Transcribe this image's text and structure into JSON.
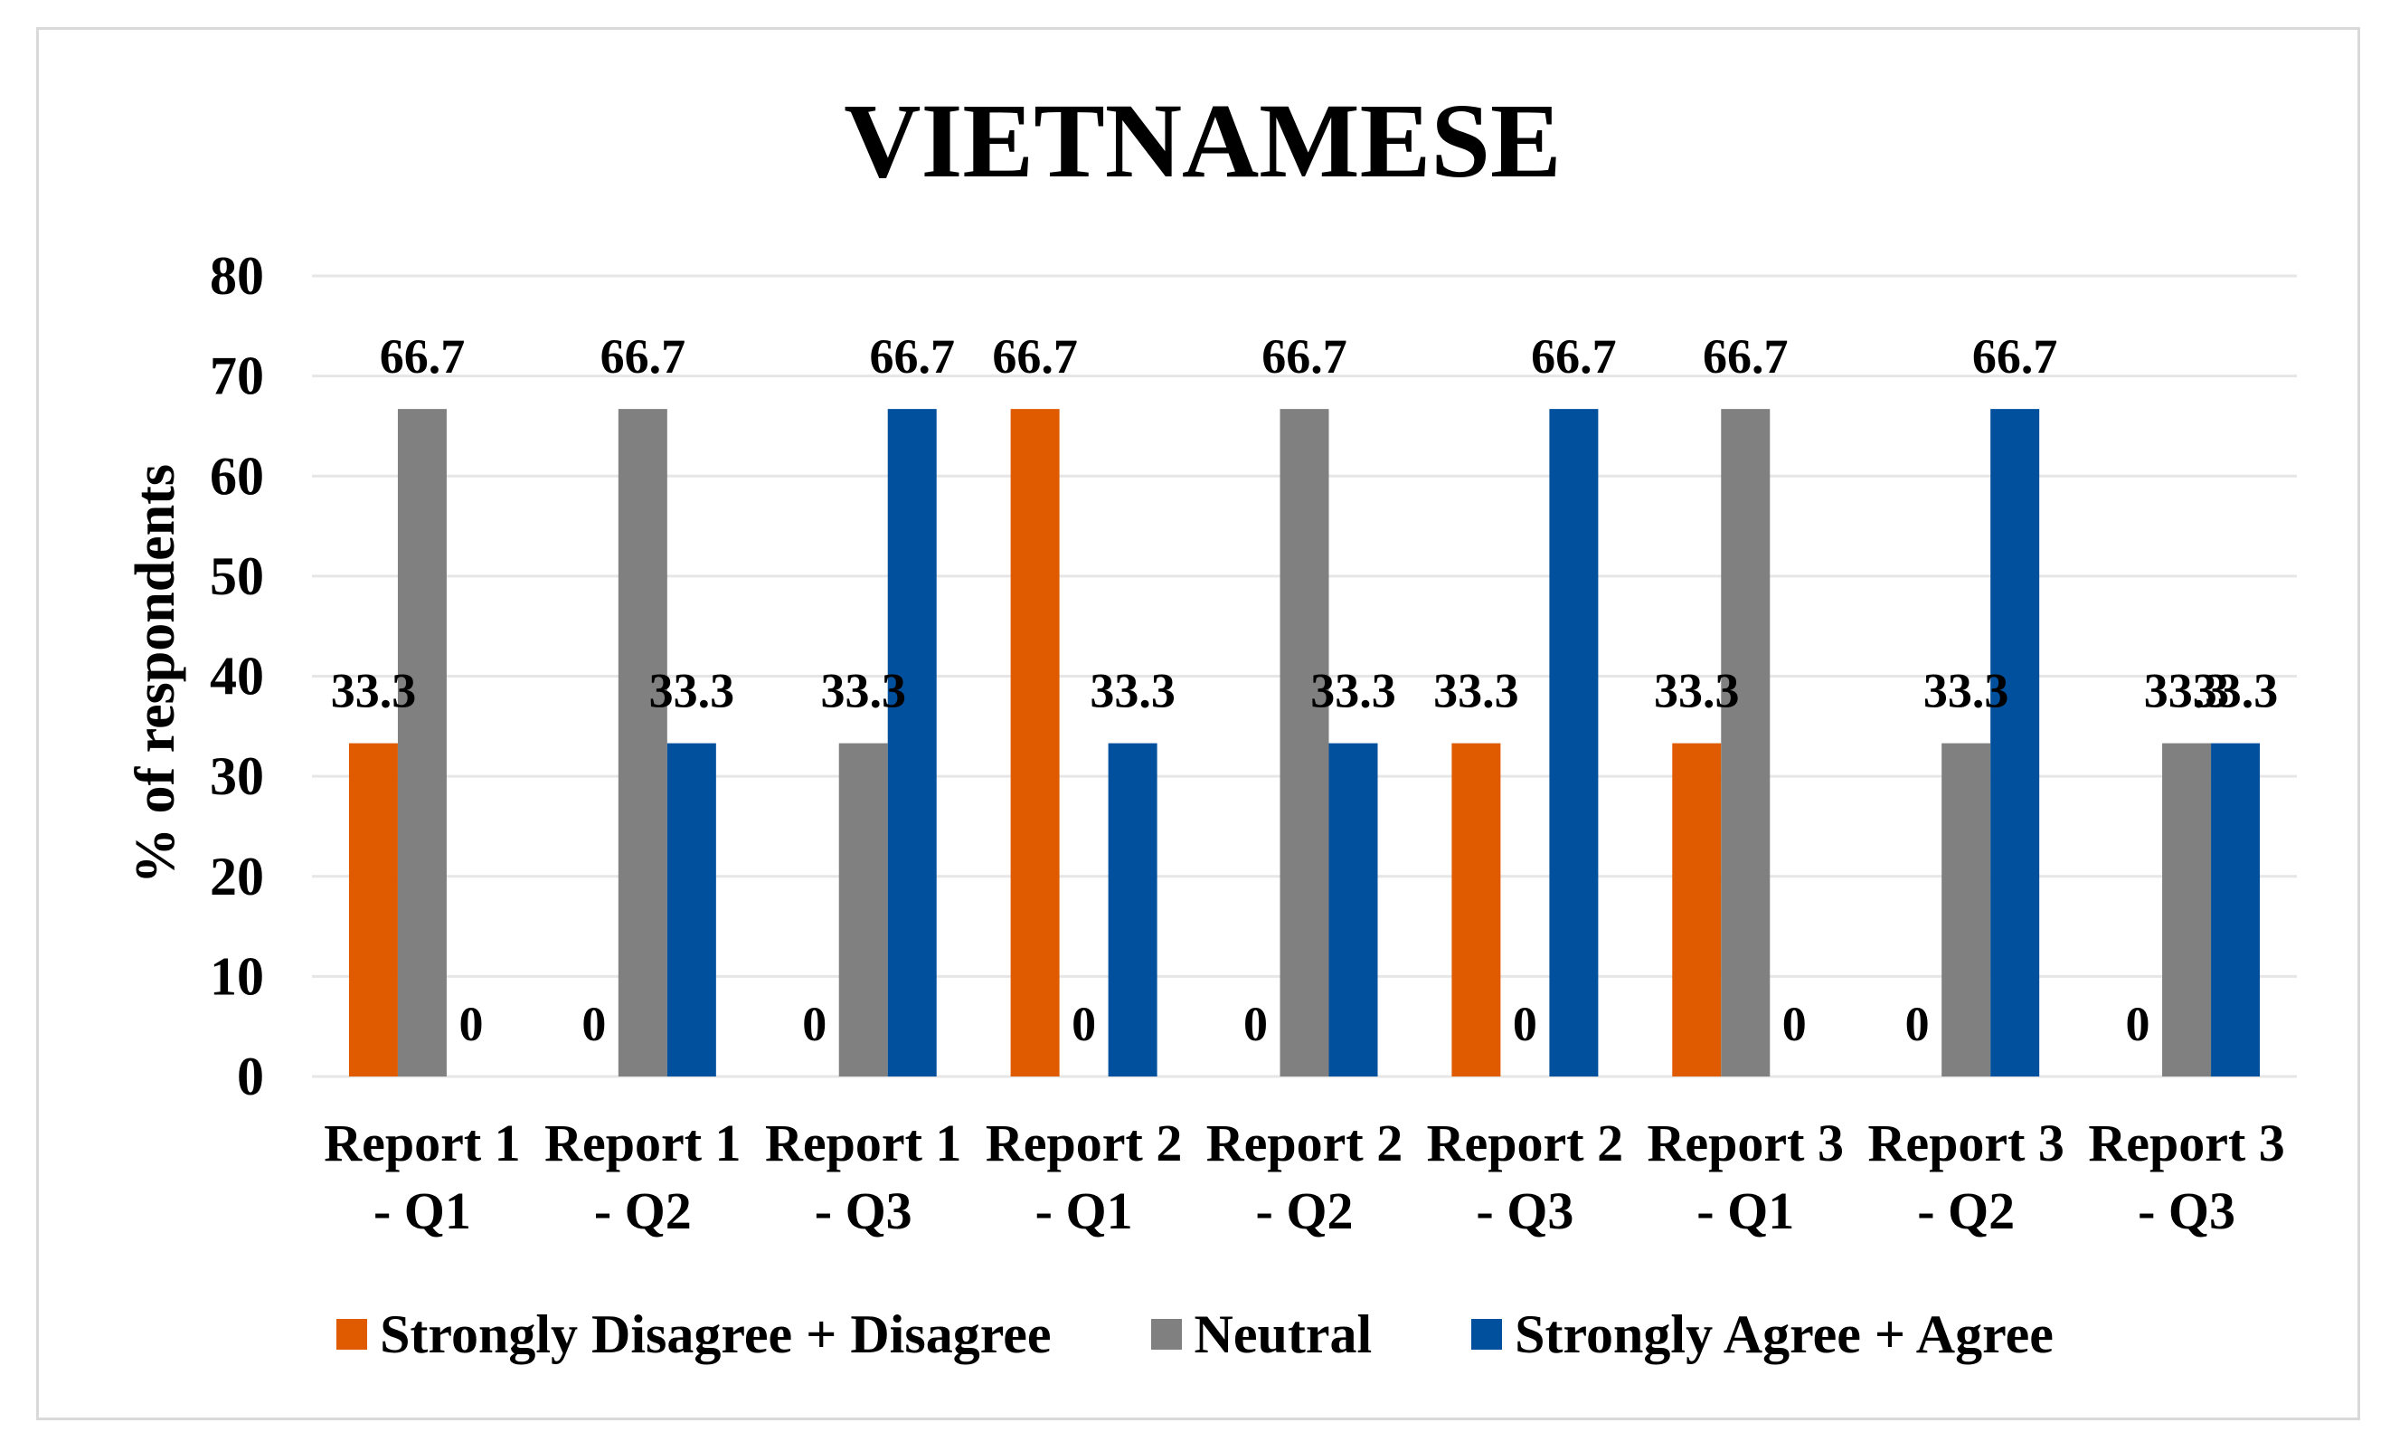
{
  "chart_data": {
    "type": "bar",
    "title": "VIETNAMESE",
    "ylabel": "% of respondents",
    "xlabel": "",
    "ylim": [
      0,
      80
    ],
    "yticks": [
      0,
      10,
      20,
      30,
      40,
      50,
      60,
      70,
      80
    ],
    "grid": true,
    "legend_position": "bottom",
    "categories": [
      [
        "Report 1",
        "- Q1"
      ],
      [
        "Report 1",
        "- Q2"
      ],
      [
        "Report 1",
        "- Q3"
      ],
      [
        "Report 2",
        "- Q1"
      ],
      [
        "Report 2",
        "- Q2"
      ],
      [
        "Report 2",
        "- Q3"
      ],
      [
        "Report 3",
        "- Q1"
      ],
      [
        "Report 3",
        "- Q2"
      ],
      [
        "Report 3",
        "- Q3"
      ]
    ],
    "series": [
      {
        "name": "Strongly Disagree + Disagree",
        "color": "#E05A00",
        "values": [
          33.3,
          0,
          0,
          66.7,
          0,
          33.3,
          33.3,
          0,
          0
        ]
      },
      {
        "name": "Neutral",
        "color": "#808080",
        "values": [
          66.7,
          66.7,
          33.3,
          0,
          66.7,
          0,
          66.7,
          33.3,
          33.3
        ]
      },
      {
        "name": "Strongly Agree + Agree",
        "color": "#00509E",
        "values": [
          0,
          33.3,
          66.7,
          33.3,
          33.3,
          66.7,
          0,
          66.7,
          33.3
        ]
      }
    ],
    "data_labels": true
  }
}
